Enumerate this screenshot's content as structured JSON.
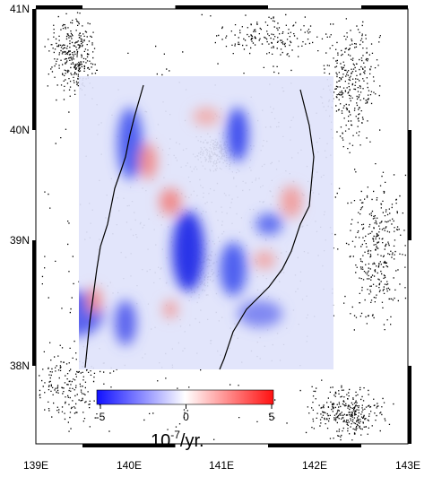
{
  "map": {
    "lat_labels": [
      "41N",
      "40N",
      "39N",
      "38N"
    ],
    "lon_labels": [
      "139E",
      "140E",
      "141E",
      "142E",
      "143E"
    ],
    "colorbar": {
      "lim": [
        -5,
        5
      ],
      "ticks": [
        -5,
        0,
        5
      ],
      "unit_base": "10",
      "unit_exp": "-7",
      "unit_suffix": "/yr."
    }
  }
}
